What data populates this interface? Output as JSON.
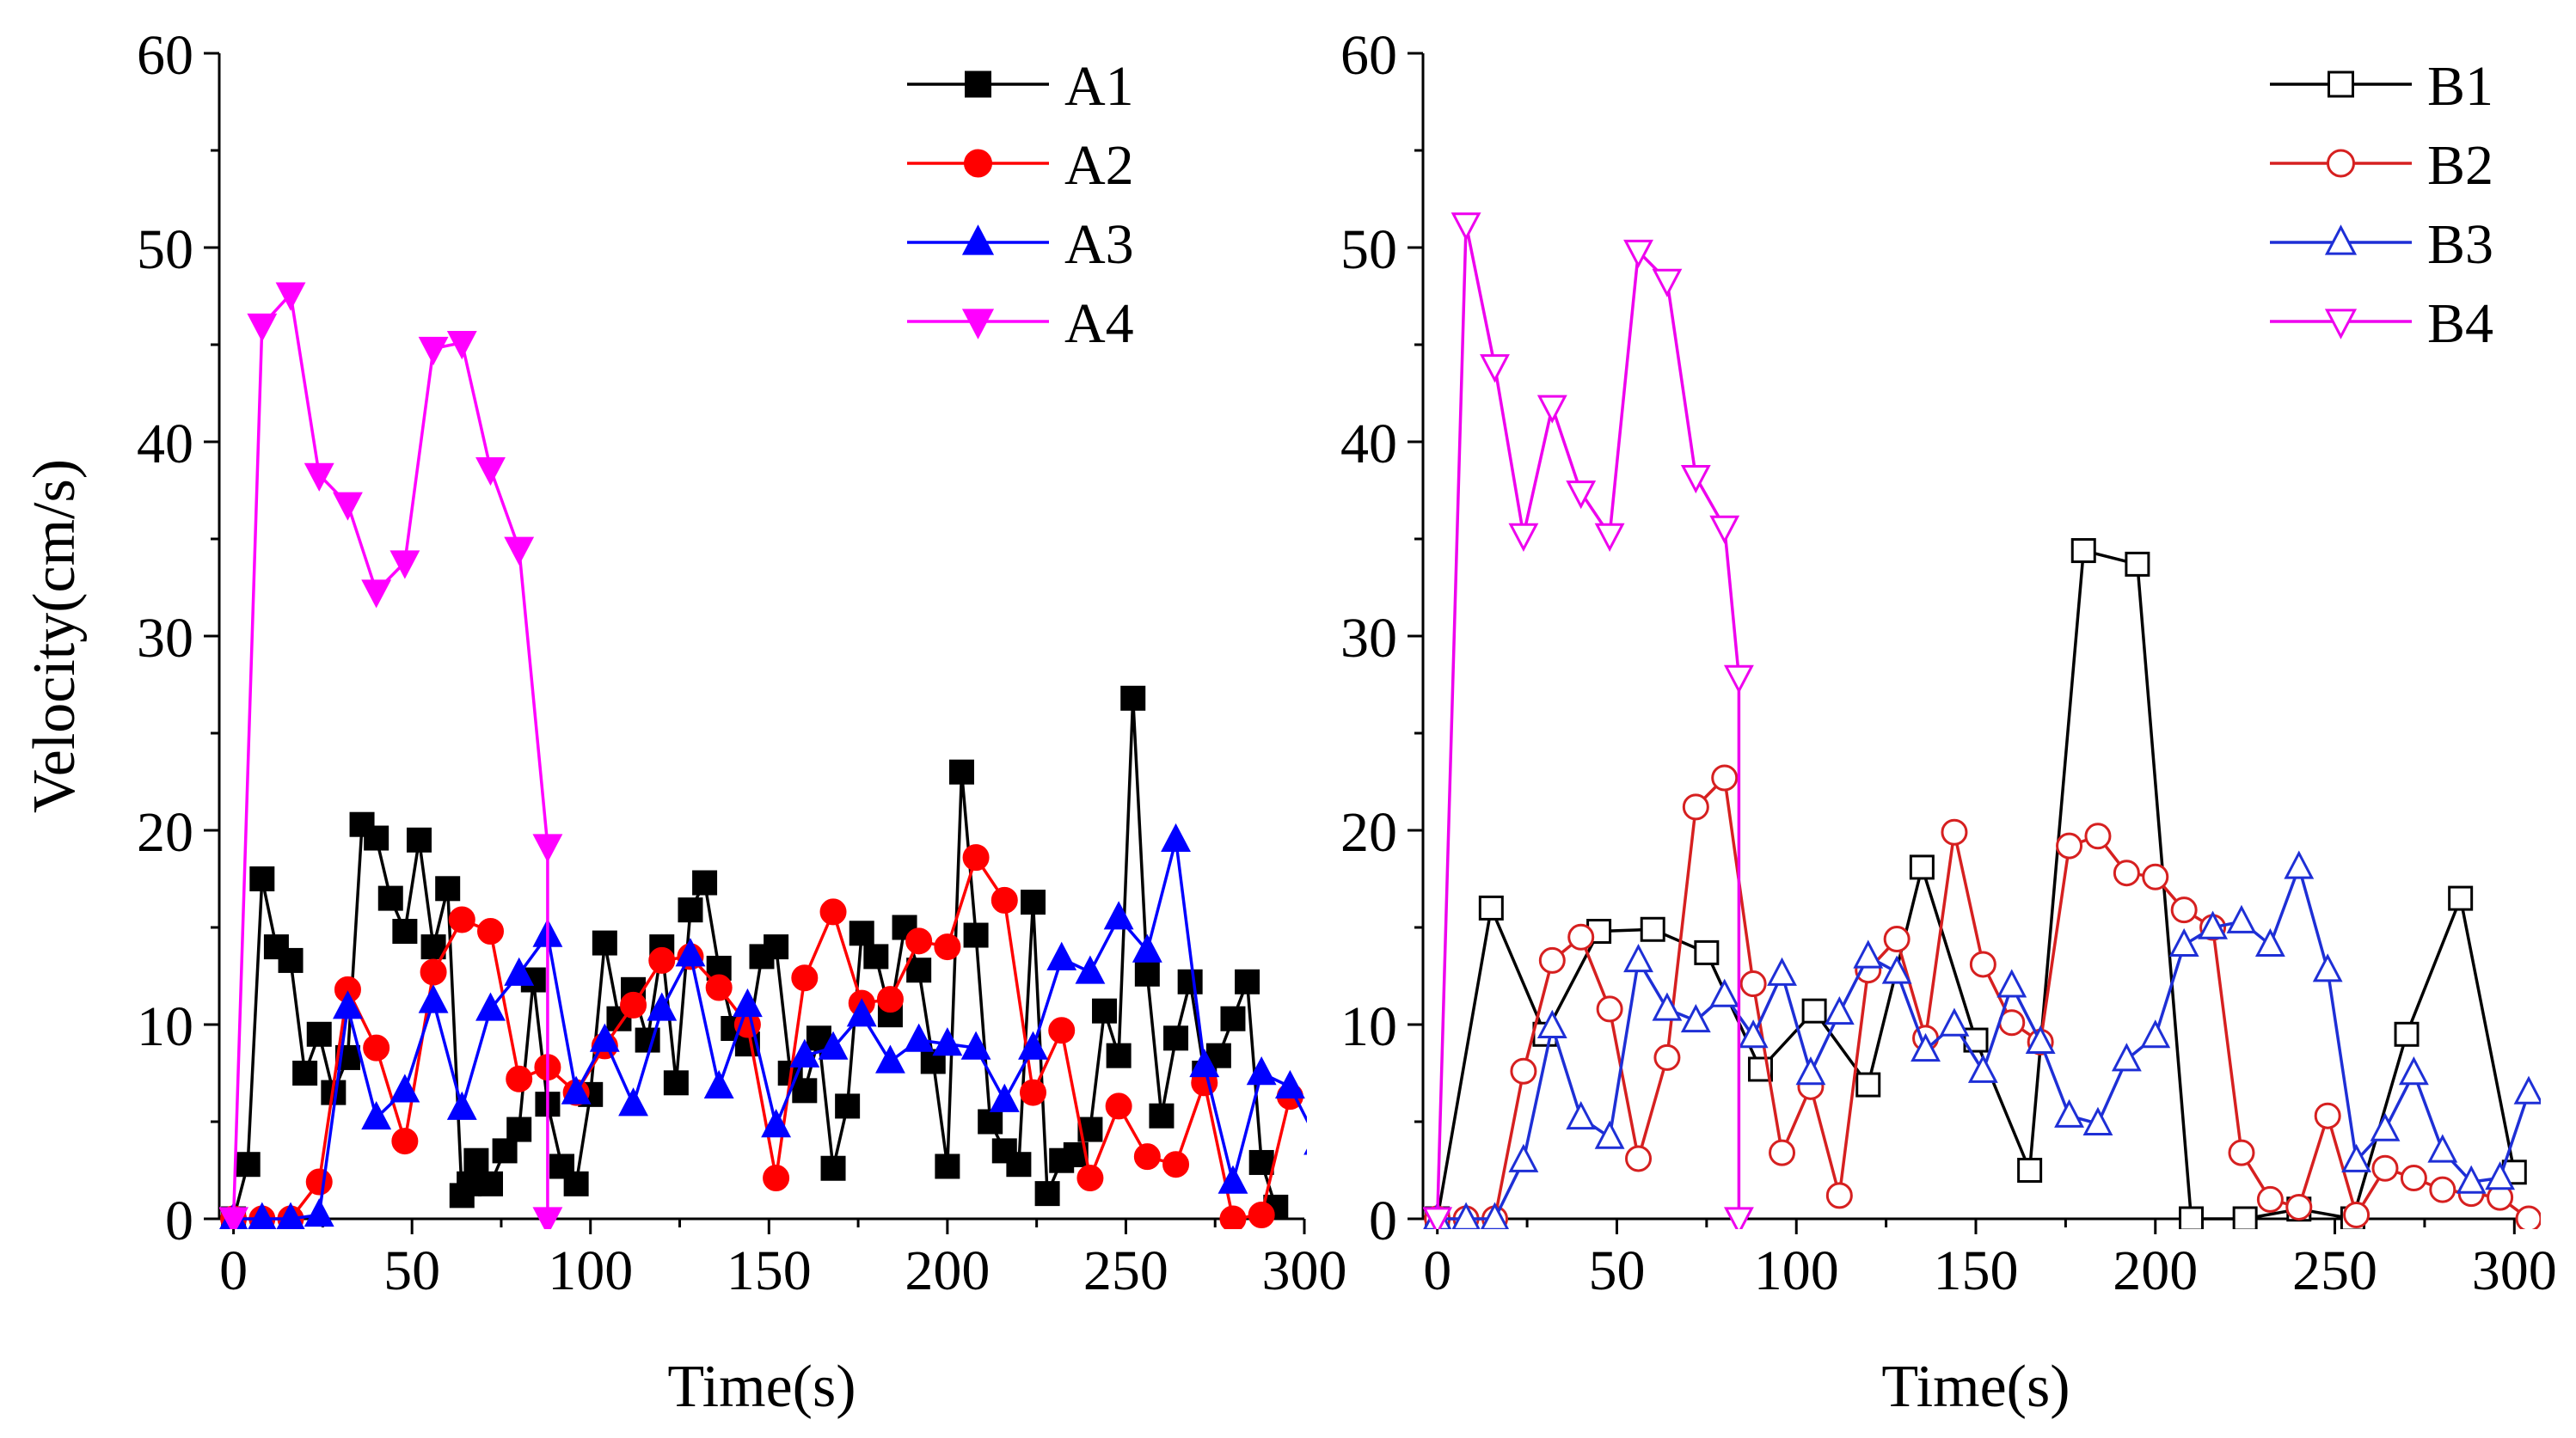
{
  "chart_data": [
    {
      "id": "A",
      "type": "line",
      "xlabel": "Time(s)",
      "ylabel": "Velocity(cm/s)",
      "xlim": [
        -4,
        300
      ],
      "ylim": [
        0,
        60
      ],
      "xticks": [
        0,
        50,
        100,
        150,
        200,
        250,
        300
      ],
      "yticks": [
        0,
        10,
        20,
        30,
        40,
        50,
        60
      ],
      "legend_position": "top-right",
      "series": [
        {
          "name": "A1",
          "color": "#000000",
          "marker": "square",
          "filled": true,
          "x": [
            0,
            4,
            8,
            12,
            16,
            20,
            24,
            28,
            32,
            36,
            40,
            44,
            48,
            52,
            56,
            60,
            64,
            66,
            68,
            72,
            76,
            80,
            84,
            88,
            92,
            96,
            100,
            104,
            108,
            112,
            116,
            120,
            124,
            128,
            132,
            136,
            140,
            144,
            148,
            152,
            156,
            160,
            164,
            168,
            172,
            176,
            180,
            184,
            188,
            192,
            196,
            200,
            204,
            208,
            212,
            216,
            220,
            224,
            228,
            232,
            236,
            240,
            244,
            248,
            252,
            256,
            260,
            264,
            268,
            272,
            276,
            280,
            284,
            288,
            292
          ],
          "y": [
            0,
            2.8,
            17.5,
            14,
            13.3,
            7.5,
            9.5,
            6.5,
            8.3,
            20.3,
            19.6,
            16.5,
            14.8,
            19.5,
            14,
            17,
            1.2,
            1.8,
            3,
            1.8,
            3.5,
            4.6,
            12.3,
            5.9,
            2.7,
            1.8,
            6.4,
            14.2,
            10.3,
            11.8,
            9.2,
            14,
            7,
            15.9,
            17.3,
            12.9,
            9.8,
            9,
            13.5,
            14,
            7.5,
            6.6,
            9.3,
            2.6,
            5.8,
            14.7,
            13.5,
            10.5,
            15,
            12.8,
            8.1,
            2.7,
            23,
            14.6,
            5,
            3.5,
            2.8,
            16.3,
            1.3,
            3,
            3.3,
            4.6,
            10.7,
            8.4,
            26.8,
            12.6,
            5.3,
            9.3,
            12.2,
            7.5,
            8.4,
            10.3,
            12.2,
            2.9,
            0.6
          ]
        },
        {
          "name": "A2",
          "color": "#ff0000",
          "marker": "circle",
          "filled": true,
          "x": [
            0,
            8,
            16,
            24,
            32,
            40,
            48,
            56,
            64,
            72,
            80,
            88,
            96,
            104,
            112,
            120,
            128,
            136,
            144,
            152,
            160,
            168,
            176,
            184,
            192,
            200,
            208,
            216,
            224,
            232,
            240,
            248,
            256,
            264,
            272,
            280,
            288,
            296
          ],
          "y": [
            0,
            0,
            0,
            1.9,
            11.8,
            8.8,
            4,
            12.7,
            15.4,
            14.8,
            7.2,
            7.8,
            6.5,
            8.9,
            11,
            13.3,
            13.5,
            11.9,
            10,
            2.1,
            12.4,
            15.8,
            11.1,
            11.3,
            14.3,
            14,
            18.6,
            16.4,
            6.5,
            9.7,
            2.1,
            5.8,
            3.2,
            2.8,
            7,
            0,
            0.2,
            6.3
          ]
        },
        {
          "name": "A3",
          "color": "#0000ff",
          "marker": "triangle-up",
          "filled": true,
          "x": [
            0,
            8,
            16,
            24,
            32,
            40,
            48,
            56,
            64,
            72,
            80,
            88,
            96,
            104,
            112,
            120,
            128,
            136,
            144,
            152,
            160,
            168,
            176,
            184,
            192,
            200,
            208,
            216,
            224,
            232,
            240,
            248,
            256,
            264,
            272,
            280,
            288,
            296,
            304
          ],
          "y": [
            0,
            0,
            0,
            0.2,
            10.9,
            5.2,
            6.6,
            11.2,
            5.7,
            10.8,
            12.6,
            14.6,
            6.5,
            9.2,
            5.9,
            10.8,
            13.6,
            6.8,
            11,
            4.8,
            8.4,
            8.8,
            10.5,
            8.1,
            9.2,
            9,
            8.8,
            6.1,
            8.8,
            13.4,
            12.7,
            15.5,
            13.8,
            19.5,
            7.9,
            1.9,
            7.5,
            6.8,
            3.9
          ]
        },
        {
          "name": "A4",
          "color": "#ff00ff",
          "marker": "triangle-down",
          "filled": true,
          "x": [
            0,
            8,
            16,
            24,
            32,
            40,
            48,
            56,
            64,
            72,
            80,
            88,
            88
          ],
          "y": [
            0,
            46,
            47.6,
            38.3,
            36.8,
            32.3,
            33.8,
            44.8,
            45.1,
            38.6,
            34.5,
            19.2,
            0
          ]
        }
      ]
    },
    {
      "id": "B",
      "type": "line",
      "xlabel": "Time(s)",
      "ylabel": "",
      "xlim": [
        -4,
        304
      ],
      "ylim": [
        0,
        60
      ],
      "xticks": [
        0,
        50,
        100,
        150,
        200,
        250,
        300
      ],
      "yticks": [
        0,
        10,
        20,
        30,
        40,
        50,
        60
      ],
      "legend_position": "top-right",
      "series": [
        {
          "name": "B1",
          "color": "#000000",
          "marker": "square",
          "filled": false,
          "x": [
            0,
            15,
            30,
            45,
            60,
            75,
            90,
            105,
            120,
            135,
            150,
            165,
            180,
            195,
            210,
            225,
            240,
            255,
            270,
            285,
            300
          ],
          "y": [
            0,
            16,
            9.5,
            14.8,
            14.9,
            13.7,
            7.7,
            10.7,
            6.9,
            18.1,
            9.2,
            2.5,
            34.4,
            33.7,
            0,
            0,
            0.5,
            0,
            9.5,
            16.5,
            2.4
          ]
        },
        {
          "name": "B2",
          "color": "#d62020",
          "marker": "circle",
          "filled": false,
          "x": [
            0,
            8,
            16,
            24,
            32,
            40,
            48,
            56,
            64,
            72,
            80,
            88,
            96,
            104,
            112,
            120,
            128,
            136,
            144,
            152,
            160,
            168,
            176,
            184,
            192,
            200,
            208,
            216,
            224,
            232,
            240,
            248,
            256,
            264,
            272,
            280,
            288,
            296,
            304
          ],
          "y": [
            0,
            0,
            0,
            7.6,
            13.3,
            14.5,
            10.8,
            3.1,
            8.3,
            21.2,
            22.7,
            12.1,
            3.4,
            6.8,
            1.2,
            12.8,
            14.4,
            9.3,
            19.9,
            13.1,
            10.1,
            9.1,
            19.2,
            19.7,
            17.8,
            17.6,
            15.9,
            15,
            3.4,
            1,
            0.6,
            5.3,
            0.2,
            2.6,
            2.1,
            1.5,
            1.3,
            1.1,
            0
          ]
        },
        {
          "name": "B3",
          "color": "#1e2fd6",
          "marker": "triangle-up",
          "filled": false,
          "x": [
            0,
            8,
            16,
            24,
            32,
            40,
            48,
            56,
            64,
            72,
            80,
            88,
            96,
            104,
            112,
            120,
            128,
            136,
            144,
            152,
            160,
            168,
            176,
            184,
            192,
            200,
            208,
            216,
            224,
            232,
            240,
            248,
            256,
            264,
            272,
            280,
            288,
            296,
            304
          ],
          "y": [
            0,
            0,
            0,
            3,
            9.9,
            5.2,
            4.2,
            13.3,
            10.8,
            10.2,
            11.5,
            9.4,
            12.6,
            7.5,
            10.6,
            13.5,
            12.7,
            8.7,
            10,
            7.6,
            12,
            9.1,
            5.3,
            4.9,
            8.2,
            9.4,
            14.1,
            15,
            15.3,
            14.1,
            18.1,
            12.8,
            3,
            4.6,
            7.5,
            3.5,
            1.9,
            2.1,
            6.5
          ]
        },
        {
          "name": "B4",
          "color": "#ee00ee",
          "marker": "triangle-down",
          "filled": false,
          "x": [
            0,
            8,
            16,
            24,
            32,
            40,
            48,
            56,
            64,
            72,
            80,
            84,
            84
          ],
          "y": [
            0,
            51.2,
            43.9,
            35.2,
            41.8,
            37.4,
            35.2,
            49.8,
            48.3,
            38.2,
            35.6,
            27.9,
            0
          ]
        }
      ]
    }
  ]
}
